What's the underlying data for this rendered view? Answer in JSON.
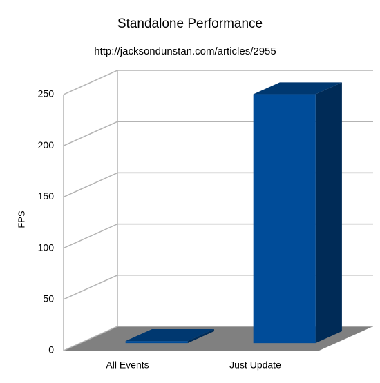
{
  "chart_data": {
    "type": "bar3d",
    "title": "Standalone Performance",
    "subtitle": "http://jacksondunstan.com/articles/2955",
    "y_label": "FPS",
    "categories": [
      "All Events",
      "Just Update"
    ],
    "values": [
      2,
      243
    ],
    "color": "#004c99",
    "ylim": [
      0,
      250
    ],
    "yticks": [
      0,
      50,
      100,
      150,
      200,
      250
    ],
    "grid": true
  }
}
